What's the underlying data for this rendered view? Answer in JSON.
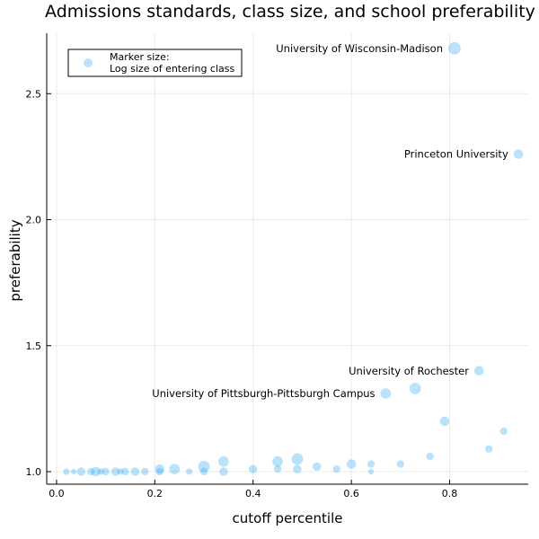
{
  "chart_data": {
    "type": "scatter",
    "title": "Admissions standards, class size, and school preferability",
    "xlabel": "cutoff percentile",
    "ylabel": "preferability",
    "xlim": [
      -0.02,
      0.96
    ],
    "ylim": [
      0.95,
      2.74
    ],
    "x_ticks": [
      {
        "value": 0.0,
        "label": "0.0"
      },
      {
        "value": 0.2,
        "label": "0.2"
      },
      {
        "value": 0.4,
        "label": "0.4"
      },
      {
        "value": 0.6,
        "label": "0.6"
      },
      {
        "value": 0.8,
        "label": "0.8"
      }
    ],
    "y_ticks": [
      {
        "value": 1.0,
        "label": "1.0"
      },
      {
        "value": 1.5,
        "label": "1.5"
      },
      {
        "value": 2.0,
        "label": "2.0"
      },
      {
        "value": 2.5,
        "label": "2.5"
      }
    ],
    "grid": true,
    "legend": {
      "placement": "top-left",
      "lines": [
        "Marker size:",
        "Log size of entering class"
      ]
    },
    "marker_color": "#1ba1f2",
    "marker_note": "Marker size: log size of entering class (relative sizes estimated)",
    "points": [
      {
        "x": 0.02,
        "y": 1.0,
        "size": 3
      },
      {
        "x": 0.035,
        "y": 1.0,
        "size": 2
      },
      {
        "x": 0.05,
        "y": 1.0,
        "size": 5
      },
      {
        "x": 0.07,
        "y": 1.0,
        "size": 4
      },
      {
        "x": 0.08,
        "y": 1.0,
        "size": 6
      },
      {
        "x": 0.09,
        "y": 1.0,
        "size": 3
      },
      {
        "x": 0.1,
        "y": 1.0,
        "size": 4
      },
      {
        "x": 0.12,
        "y": 1.0,
        "size": 5
      },
      {
        "x": 0.13,
        "y": 1.0,
        "size": 3
      },
      {
        "x": 0.14,
        "y": 1.0,
        "size": 4
      },
      {
        "x": 0.16,
        "y": 1.0,
        "size": 5
      },
      {
        "x": 0.18,
        "y": 1.0,
        "size": 4
      },
      {
        "x": 0.21,
        "y": 1.01,
        "size": 6
      },
      {
        "x": 0.21,
        "y": 1.0,
        "size": 4
      },
      {
        "x": 0.24,
        "y": 1.01,
        "size": 7
      },
      {
        "x": 0.27,
        "y": 1.0,
        "size": 3
      },
      {
        "x": 0.3,
        "y": 1.02,
        "size": 8
      },
      {
        "x": 0.3,
        "y": 1.0,
        "size": 4
      },
      {
        "x": 0.34,
        "y": 1.04,
        "size": 7
      },
      {
        "x": 0.34,
        "y": 1.0,
        "size": 5
      },
      {
        "x": 0.4,
        "y": 1.01,
        "size": 5
      },
      {
        "x": 0.45,
        "y": 1.04,
        "size": 7
      },
      {
        "x": 0.45,
        "y": 1.01,
        "size": 4
      },
      {
        "x": 0.49,
        "y": 1.05,
        "size": 8
      },
      {
        "x": 0.49,
        "y": 1.01,
        "size": 5
      },
      {
        "x": 0.53,
        "y": 1.02,
        "size": 5
      },
      {
        "x": 0.57,
        "y": 1.01,
        "size": 4
      },
      {
        "x": 0.6,
        "y": 1.03,
        "size": 6
      },
      {
        "x": 0.64,
        "y": 1.03,
        "size": 4
      },
      {
        "x": 0.64,
        "y": 1.0,
        "size": 2
      },
      {
        "x": 0.67,
        "y": 1.31,
        "size": 7,
        "label": "University of Pittsburgh-Pittsburgh Campus"
      },
      {
        "x": 0.7,
        "y": 1.03,
        "size": 4
      },
      {
        "x": 0.73,
        "y": 1.33,
        "size": 8
      },
      {
        "x": 0.76,
        "y": 1.06,
        "size": 4
      },
      {
        "x": 0.79,
        "y": 1.2,
        "size": 6
      },
      {
        "x": 0.81,
        "y": 2.68,
        "size": 9,
        "label": "University of Wisconsin-Madison"
      },
      {
        "x": 0.86,
        "y": 1.4,
        "size": 6,
        "label": "University of Rochester"
      },
      {
        "x": 0.88,
        "y": 1.09,
        "size": 4
      },
      {
        "x": 0.91,
        "y": 1.16,
        "size": 4
      },
      {
        "x": 0.94,
        "y": 2.26,
        "size": 6,
        "label": "Princeton University"
      }
    ]
  }
}
